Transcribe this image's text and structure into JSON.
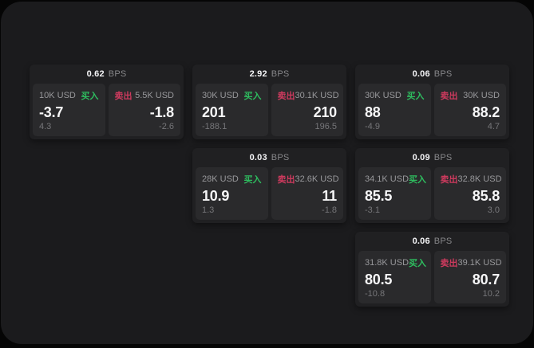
{
  "unit_label": "BPS",
  "side_labels": {
    "buy": "买入",
    "sell": "卖出"
  },
  "colors": {
    "window_background": "#1b1b1d",
    "page_background": "#050505",
    "card_background": "#202022",
    "panel_background": "#2a2a2c",
    "buy_accent": "#2ebd5f",
    "sell_accent": "#ce3a5e",
    "primary_text": "#f7f7f8",
    "muted_text": "#98989b"
  },
  "cards": [
    {
      "bps": "0.62",
      "buy": {
        "notional": "10K USD",
        "value": "-3.7",
        "sub": "4.3"
      },
      "sell": {
        "notional": "5.5K USD",
        "value": "-1.8",
        "sub": "-2.6"
      }
    },
    {
      "bps": "2.92",
      "buy": {
        "notional": "30K USD",
        "value": "201",
        "sub": "-188.1"
      },
      "sell": {
        "notional": "30.1K USD",
        "value": "210",
        "sub": "196.5"
      }
    },
    {
      "bps": "0.06",
      "buy": {
        "notional": "30K USD",
        "value": "88",
        "sub": "-4.9"
      },
      "sell": {
        "notional": "30K USD",
        "value": "88.2",
        "sub": "4.7"
      }
    },
    {
      "bps": "0.03",
      "buy": {
        "notional": "28K USD",
        "value": "10.9",
        "sub": "1.3"
      },
      "sell": {
        "notional": "32.6K USD",
        "value": "11",
        "sub": "-1.8"
      }
    },
    {
      "bps": "0.09",
      "buy": {
        "notional": "34.1K USD",
        "value": "85.5",
        "sub": "-3.1"
      },
      "sell": {
        "notional": "32.8K USD",
        "value": "85.8",
        "sub": "3.0"
      }
    },
    {
      "bps": "0.06",
      "buy": {
        "notional": "31.8K USD",
        "value": "80.5",
        "sub": "-10.8"
      },
      "sell": {
        "notional": "39.1K USD",
        "value": "80.7",
        "sub": "10.2"
      }
    }
  ]
}
